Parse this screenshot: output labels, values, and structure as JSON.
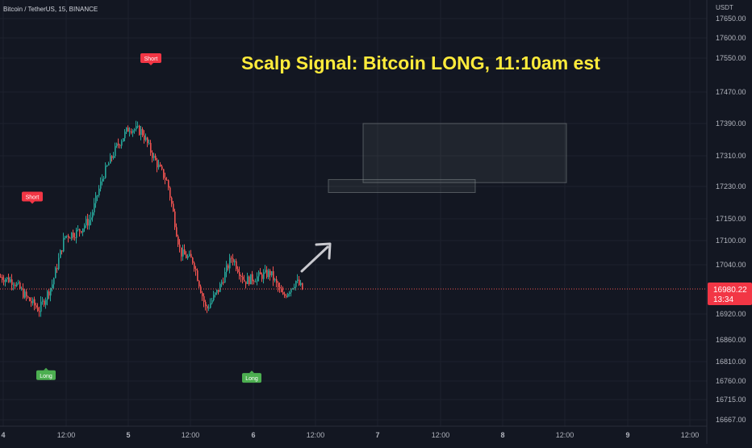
{
  "header": {
    "symbol": "Bitcoin / TetherUS, 15, BINANCE",
    "currency": "USDT"
  },
  "headline": "Scalp Signal: Bitcoin LONG, 11:10am est",
  "signals": {
    "short_label": "Short",
    "long_label": "Long"
  },
  "price_tag": {
    "price": "16980.22",
    "countdown": "13:34"
  },
  "colors": {
    "background": "#131722",
    "up": "#26a69a",
    "down": "#ef5350",
    "headline": "#ffeb3b",
    "short_badge": "#f23645",
    "long_badge": "#4caf50",
    "grid": "#1e222d",
    "axis_text": "#b2b5be"
  },
  "chart_data": {
    "type": "candlestick",
    "title": "",
    "yaxis": {
      "ticks": [
        "17650.00",
        "17600.00",
        "17550.00",
        "17470.00",
        "17390.00",
        "17310.00",
        "17230.00",
        "17150.00",
        "17100.00",
        "17040.00",
        "16980.22",
        "16920.00",
        "16860.00",
        "16810.00",
        "16760.00",
        "16715.00",
        "16667.00"
      ],
      "range": [
        16660,
        17660
      ],
      "scale": "log-like (non-uniform tick spacing)"
    },
    "xaxis": {
      "ticks": [
        "4",
        "12:00",
        "5",
        "12:00",
        "6",
        "12:00",
        "7",
        "12:00",
        "8",
        "12:00",
        "9",
        "12:00"
      ]
    },
    "last_price": 16980.22,
    "price_path": [
      {
        "t": 0,
        "p": 17010
      },
      {
        "t": 4,
        "p": 17000
      },
      {
        "t": 8,
        "p": 16960
      },
      {
        "t": 12,
        "p": 16930
      },
      {
        "t": 16,
        "p": 16990
      },
      {
        "t": 20,
        "p": 17110
      },
      {
        "t": 24,
        "p": 17120
      },
      {
        "t": 28,
        "p": 17150
      },
      {
        "t": 32,
        "p": 17260
      },
      {
        "t": 36,
        "p": 17330
      },
      {
        "t": 40,
        "p": 17380
      },
      {
        "t": 44,
        "p": 17370
      },
      {
        "t": 48,
        "p": 17300
      },
      {
        "t": 52,
        "p": 17240
      },
      {
        "t": 56,
        "p": 17070
      },
      {
        "t": 60,
        "p": 17050
      },
      {
        "t": 64,
        "p": 16930
      },
      {
        "t": 68,
        "p": 16980
      },
      {
        "t": 72,
        "p": 17060
      },
      {
        "t": 76,
        "p": 17000
      },
      {
        "t": 80,
        "p": 17010
      },
      {
        "t": 84,
        "p": 17020
      },
      {
        "t": 88,
        "p": 16960
      },
      {
        "t": 92,
        "p": 17000
      },
      {
        "t": 94,
        "p": 16980
      }
    ],
    "signals": [
      {
        "label": "Short",
        "price": 17550
      },
      {
        "label": "Short",
        "price": 17205
      },
      {
        "label": "Long",
        "price": 16775
      },
      {
        "label": "Long",
        "price": 16768
      }
    ],
    "zones": [
      {
        "price_top": 17390,
        "price_bottom": 17240
      },
      {
        "price_top": 17248,
        "price_bottom": 17215
      }
    ]
  }
}
